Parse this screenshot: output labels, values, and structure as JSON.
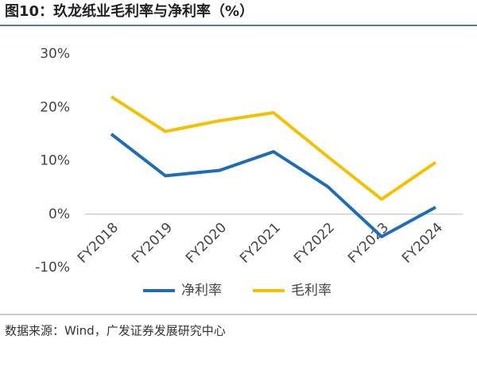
{
  "chart_data": {
    "type": "line",
    "title": "图10：玖龙纸业毛利率与净利率（%）",
    "source": "数据来源：Wind，广发证券发展研究中心",
    "categories": [
      "FY2018",
      "FY2019",
      "FY2020",
      "FY2021",
      "FY2022",
      "FY2023",
      "FY2024"
    ],
    "series": [
      {
        "name": "净利率",
        "color": "#1f6db5",
        "values": [
          15,
          7.2,
          8.2,
          11.7,
          5.2,
          -4.2,
          1.3
        ]
      },
      {
        "name": "毛利率",
        "color": "#f5c000",
        "values": [
          22,
          15.5,
          17.5,
          19,
          10.8,
          2.8,
          9.7
        ]
      }
    ],
    "ylim": [
      -10,
      30
    ],
    "yticks": [
      {
        "value": 30,
        "label": "30%"
      },
      {
        "value": 20,
        "label": "20%"
      },
      {
        "value": 10,
        "label": "10%"
      },
      {
        "value": 0,
        "label": "0%"
      },
      {
        "value": -10,
        "label": "-10%"
      }
    ]
  }
}
